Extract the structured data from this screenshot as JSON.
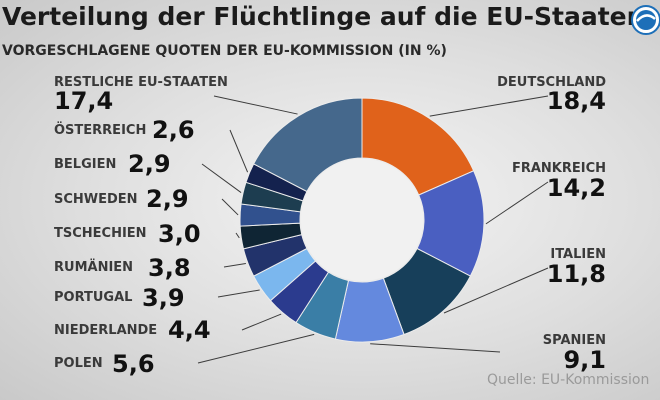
{
  "header": {
    "title": "Verteilung der Flüchtlinge auf die EU-Staaten",
    "subtitle": "VORGESCHLAGENE QUOTEN DER EU-KOMMISSION (IN %)"
  },
  "footer": {
    "source": "Quelle: EU-Kommission"
  },
  "logo": {
    "icon": "broadcaster-logo-icon",
    "color": "#1d6fb8"
  },
  "colors": {
    "DEUTSCHLAND": "#e0621b",
    "FRANKREICH": "#4a5fc1",
    "ITALIEN": "#173f5a",
    "SPANIEN": "#6489de",
    "POLEN": "#3a7ea6",
    "NIEDERLANDE": "#2b3b8e",
    "PORTUGAL": "#7bb7ee",
    "RUMÄNIEN": "#22336b",
    "TSCHECHIEN": "#0f2534",
    "SCHWEDEN": "#31518e",
    "BELGIEN": "#1d3d50",
    "ÖSTERREICH": "#14224e",
    "RESTLICHE EU-STAATEN": "#45688c"
  },
  "chart_data": {
    "type": "pie",
    "donut": true,
    "title": "Verteilung der Flüchtlinge auf die EU-Staaten",
    "subtitle": "VORGESCHLAGENE QUOTEN DER EU-KOMMISSION (IN %)",
    "categories": [
      "DEUTSCHLAND",
      "FRANKREICH",
      "ITALIEN",
      "SPANIEN",
      "POLEN",
      "NIEDERLANDE",
      "PORTUGAL",
      "RUMÄNIEN",
      "TSCHECHIEN",
      "SCHWEDEN",
      "BELGIEN",
      "ÖSTERREICH",
      "RESTLICHE EU-STAATEN"
    ],
    "values": [
      18.4,
      14.2,
      11.8,
      9.1,
      5.6,
      4.4,
      3.9,
      3.8,
      3.0,
      2.9,
      2.9,
      2.6,
      17.4
    ],
    "value_labels": [
      "18,4",
      "14,2",
      "11,8",
      "9,1",
      "5,6",
      "4,4",
      "3,9",
      "3,8",
      "3,0",
      "2,9",
      "2,9",
      "2,6",
      "17,4"
    ]
  }
}
